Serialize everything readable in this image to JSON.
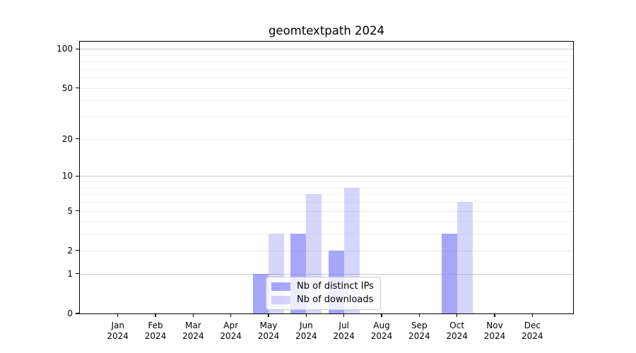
{
  "title": "geomtextpath 2024",
  "chart_data": {
    "type": "bar",
    "title": "geomtextpath 2024",
    "categories": [
      "Jan",
      "Feb",
      "Mar",
      "Apr",
      "May",
      "Jun",
      "Jul",
      "Aug",
      "Sep",
      "Oct",
      "Nov",
      "Dec"
    ],
    "year_label": "2024",
    "series": [
      {
        "name": "Nb of distinct IPs",
        "color": "rgba(122,122,246,0.66)",
        "values": [
          0,
          0,
          0,
          0,
          1,
          3,
          2,
          0,
          0,
          3,
          0,
          0
        ]
      },
      {
        "name": "Nb of downloads",
        "color": "rgba(122,122,246,0.31)",
        "values": [
          0,
          0,
          0,
          0,
          3,
          7,
          8,
          0,
          0,
          6,
          0,
          0
        ]
      }
    ],
    "y_scale": "log1p",
    "y_ticks": [
      0,
      1,
      2,
      5,
      10,
      20,
      50,
      100
    ],
    "ylim": [
      0,
      113
    ],
    "grid": {
      "decade_lines": [
        1,
        10,
        100
      ],
      "sub_major_lines": [
        2,
        5,
        20,
        50
      ],
      "minor_lines": [
        3,
        4,
        6,
        7,
        8,
        9,
        30,
        40,
        60,
        70,
        80,
        90
      ],
      "on": true
    },
    "legend_position": "lower center",
    "xlabel": "",
    "ylabel": ""
  },
  "colors": {
    "bar_base": "#7a7af6",
    "grid_decade": "#c9c9c9",
    "grid_sub": "#e7e7e7",
    "grid_minor": "#f3f3f3",
    "spine": "#000000",
    "legend_border": "#cccccc"
  }
}
